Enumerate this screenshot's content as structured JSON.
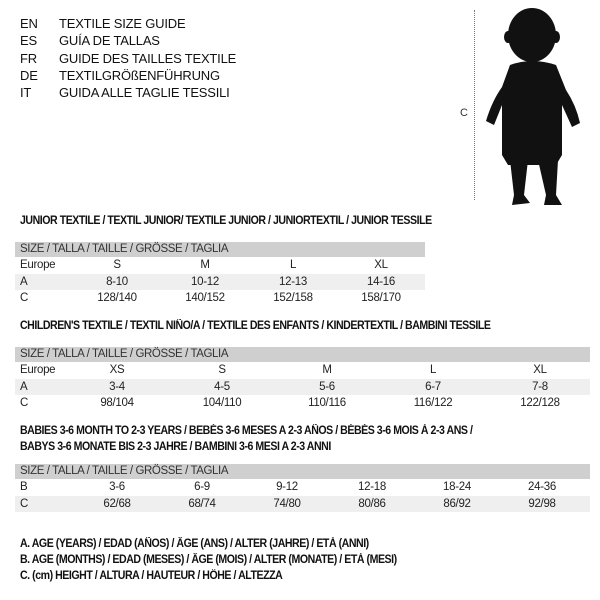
{
  "languages": [
    {
      "code": "EN",
      "label": "TEXTILE SIZE GUIDE"
    },
    {
      "code": "ES",
      "label": "GUÍA DE TALLAS"
    },
    {
      "code": "FR",
      "label": "GUIDE DES TAILLES TEXTILE"
    },
    {
      "code": "DE",
      "label": "TEXTILGRÖßENFÜHRUNG"
    },
    {
      "code": "IT",
      "label": "GUIDA ALLE TAGLIE TESSILI"
    }
  ],
  "figure": {
    "measure_label": "C",
    "icon": "child-silhouette"
  },
  "tables": [
    {
      "title": [
        "JUNIOR TEXTILE / TEXTIL JUNIOR/ TEXTILE JUNIOR / JUNIORTEXTIL / JUNIOR TESSILE"
      ],
      "header": "SIZE / TALLA / TAILLE / GRÖSSE / TAGLIA",
      "rows": [
        {
          "label": "Europe",
          "values": [
            "S",
            "M",
            "L",
            "XL"
          ]
        },
        {
          "label": "A",
          "values": [
            "8-10",
            "10-12",
            "12-13",
            "14-16"
          ]
        },
        {
          "label": "C",
          "values": [
            "128/140",
            "140/152",
            "152/158",
            "158/170"
          ]
        }
      ]
    },
    {
      "title": [
        "CHILDREN'S TEXTILE / TEXTIL NIÑO/A / TEXTILE DES ENFANTS / KINDERTEXTIL / BAMBINI TESSILE"
      ],
      "header": "SIZE / TALLA / TAILLE / GRÖSSE / TAGLIA",
      "rows": [
        {
          "label": "Europe",
          "values": [
            "XS",
            "S",
            "M",
            "L",
            "XL"
          ]
        },
        {
          "label": "A",
          "values": [
            "3-4",
            "4-5",
            "5-6",
            "6-7",
            "7-8"
          ]
        },
        {
          "label": "C",
          "values": [
            "98/104",
            "104/110",
            "110/116",
            "116/122",
            "122/128"
          ]
        }
      ]
    },
    {
      "title": [
        "BABIES 3-6 MONTH TO 2-3 YEARS / BEBÉS 3-6 MESES A 2-3 AÑOS / BÉBÉS 3-6 MOIS À 2-3 ANS /",
        "BABYS 3-6 MONATE BIS 2-3 JAHRE / BAMBINI 3-6 MESI A 2-3 ANNI"
      ],
      "header": "SIZE / TALLA / TAILLE / GRÖSSE / TAGLIA",
      "rows": [
        {
          "label": "B",
          "values": [
            "3-6",
            "6-9",
            "9-12",
            "12-18",
            "18-24",
            "24-36"
          ]
        },
        {
          "label": "C",
          "values": [
            "62/68",
            "68/74",
            "74/80",
            "80/86",
            "86/92",
            "92/98"
          ]
        }
      ]
    }
  ],
  "notes": [
    "A. AGE (YEARS) / EDAD (AÑOS) / ÂGE (ANS) / ALTER (JAHRE) / ETÀ (ANNI)",
    "B. AGE (MONTHS) / EDAD (MESES) / ÂGE (MOIS) / ALTER (MONATE) / ETÀ (MESI)",
    "C. (cm) HEIGHT / ALTURA / HAUTEUR / HÖHE / ALTEZZA"
  ]
}
